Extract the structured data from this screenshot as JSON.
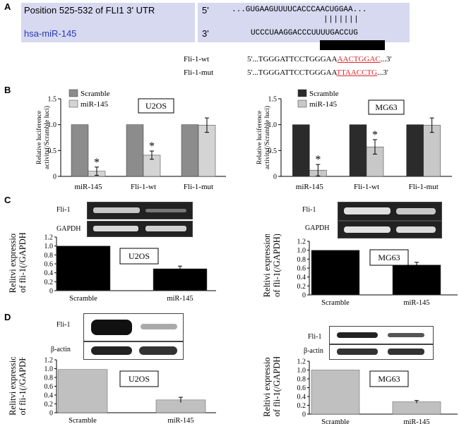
{
  "panels": {
    "A": "A",
    "B": "B",
    "C": "C",
    "D": "D"
  },
  "panelA": {
    "row1_label": "Position 525-532 of FLI1 3' UTR",
    "row1_end": "5'",
    "row1_seq": "...GUGAAGUUUUCACCCAACUGGAA...",
    "pairing": "|||||||",
    "row2_label": "hsa-miR-145",
    "row2_end": "3'",
    "row2_seq": "UCCCUAAGGACCCUUUUGACCUG",
    "wt_label": "Fli-1-wt",
    "wt_seq_prefix": "5'...TGGGATTCCTGGGAA",
    "wt_seq_site": "AACTGGAC",
    "wt_seq_suffix": "...3'",
    "mut_label": "Fli-1-mut",
    "mut_seq_prefix": "5'...TGGGATTCCTGGGAA",
    "mut_seq_site": "TTAACCTG",
    "mut_seq_suffix": "...3'",
    "site_color": "#e0262b"
  },
  "chart_data": [
    {
      "id": "B-left",
      "type": "bar",
      "cell_line": "U2OS",
      "ylabel_line1": "Relative luciference",
      "ylabel_line2": "activity(/Scramble luci)",
      "categories": [
        "miR-145",
        "Fli-1-wt",
        "Fli-1-mut"
      ],
      "series": [
        {
          "name": "Scramble",
          "values": [
            1.0,
            1.0,
            1.0
          ],
          "errors": [
            0,
            0,
            0
          ],
          "color": "#8c8c8c"
        },
        {
          "name": "miR-145",
          "values": [
            0.1,
            0.41,
            0.99
          ],
          "errors": [
            0.08,
            0.08,
            0.14
          ],
          "color": "#d4d4d4"
        }
      ],
      "significance": [
        "*",
        "*",
        ""
      ],
      "ylim": [
        0,
        1.5
      ],
      "yticks": [
        "0",
        "0.5",
        "1.0",
        "1.5"
      ],
      "legend": "top-left"
    },
    {
      "id": "B-right",
      "type": "bar",
      "cell_line": "MG63",
      "ylabel_line1": "Relative luciference",
      "ylabel_line2": "activity(/Scramble luci)",
      "categories": [
        "miR-145",
        "Fli-1-wt",
        "Fli-1-mut"
      ],
      "series": [
        {
          "name": "Scramble",
          "values": [
            1.0,
            1.0,
            1.0
          ],
          "errors": [
            0,
            0,
            0
          ],
          "color": "#2b2b2b"
        },
        {
          "name": "miR-145",
          "values": [
            0.12,
            0.57,
            0.99
          ],
          "errors": [
            0.11,
            0.14,
            0.14
          ],
          "color": "#c8c8c8"
        }
      ],
      "significance": [
        "*",
        "*",
        ""
      ],
      "ylim": [
        0,
        1.5
      ],
      "yticks": [
        "0",
        "0.5",
        "1.0",
        "1.5"
      ],
      "legend": "top-left"
    },
    {
      "id": "C-left",
      "type": "bar",
      "cell_line": "U2OS",
      "ylabel_line1": "Relitvi  expression",
      "ylabel_line2": "of fli-1(/GAPDH)",
      "categories": [
        "Scramble",
        "miR-145"
      ],
      "series": [
        {
          "values": [
            1.0,
            0.49
          ],
          "errors": [
            0,
            0.06
          ],
          "color": "#000000"
        }
      ],
      "ylim": [
        0,
        1.2
      ],
      "yticks": [
        "0",
        "0.2",
        "0.4",
        "0.6",
        "0.8",
        "1.0",
        "1.2"
      ],
      "gel_labels": [
        "Fli-1",
        "GAPDH"
      ]
    },
    {
      "id": "C-right",
      "type": "bar",
      "cell_line": "MG63",
      "ylabel_line1": "Reltivi  expression",
      "ylabel_line2": "of fli-1(/GAPDH)",
      "categories": [
        "Scramble",
        "miR-145"
      ],
      "series": [
        {
          "values": [
            1.0,
            0.67
          ],
          "errors": [
            0,
            0.06
          ],
          "color": "#000000"
        }
      ],
      "ylim": [
        0,
        1.2
      ],
      "yticks": [
        "0",
        "0.2",
        "0.4",
        "0.6",
        "0.8",
        "1.0",
        "1.2"
      ],
      "gel_labels": [
        "Fli-1",
        "GAPDH"
      ]
    },
    {
      "id": "D-left",
      "type": "bar",
      "cell_line": "U2OS",
      "ylabel_line1": "Relitvi  expression",
      "ylabel_line2": "of fli-1(/GAPDH)",
      "categories": [
        "Scramble",
        "miR-145"
      ],
      "series": [
        {
          "values": [
            0.98,
            0.29
          ],
          "errors": [
            0,
            0.06
          ],
          "color": "#c0c0c0"
        }
      ],
      "ylim": [
        0,
        1.2
      ],
      "yticks": [
        "0",
        "0.2",
        "0.4",
        "0.6",
        "0.8",
        "1.0",
        "1.2"
      ],
      "gel_labels": [
        "Fli-1",
        "β-actin"
      ]
    },
    {
      "id": "D-right",
      "type": "bar",
      "cell_line": "MG63",
      "ylabel_line1": "Reltivi  expression",
      "ylabel_line2": "of fli-1(/GAPDH)",
      "categories": [
        "Scramble",
        "miR-145"
      ],
      "series": [
        {
          "values": [
            1.0,
            0.28
          ],
          "errors": [
            0,
            0.03
          ],
          "color": "#c0c0c0"
        }
      ],
      "ylim": [
        0,
        1.2
      ],
      "yticks": [
        "0",
        "0.2",
        "0.4",
        "0.6",
        "0.8",
        "1.0",
        "1.2"
      ],
      "gel_labels": [
        "Fli-1",
        "β-actin"
      ]
    }
  ]
}
